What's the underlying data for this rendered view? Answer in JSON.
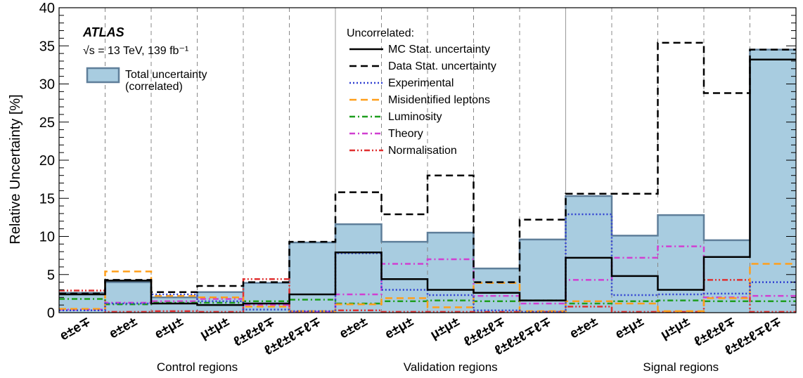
{
  "chart_data": {
    "type": "step-histogram",
    "ylabel": "Relative Uncertainty [%]",
    "ylim": [
      0,
      40
    ],
    "yticks": [
      "0",
      "5",
      "10",
      "15",
      "20",
      "25",
      "30",
      "35",
      "40"
    ],
    "atlas_label": "ATLAS",
    "energy_label": "√s = 13 TeV, 139 fb⁻¹",
    "total_legend_line1": "Total uncertainty",
    "total_legend_line2": "(correlated)",
    "uncorrelated_title": "Uncorrelated:",
    "categories": [
      "e±e∓",
      "e±e±",
      "e±μ±",
      "μ±μ±",
      "ℓ±ℓ±ℓ∓",
      "ℓ±ℓ±ℓ∓ℓ∓",
      "e±e±",
      "e±μ±",
      "μ±μ±",
      "ℓ±ℓ±ℓ∓",
      "ℓ±ℓ±ℓ∓ℓ∓",
      "e±e±",
      "e±μ±",
      "μ±μ±",
      "ℓ±ℓ±ℓ∓",
      "ℓ±ℓ±ℓ∓ℓ∓"
    ],
    "groups": [
      {
        "label": "Control regions",
        "start": 0,
        "end": 6
      },
      {
        "label": "Validation regions",
        "start": 6,
        "end": 11
      },
      {
        "label": "Signal regions",
        "start": 11,
        "end": 16
      }
    ],
    "total": {
      "name": "Total uncertainty (correlated)",
      "fill": "#a8cce0",
      "stroke": "#5f7f9a",
      "values": [
        2.6,
        4.0,
        2.0,
        2.7,
        3.9,
        9.2,
        11.6,
        9.3,
        10.5,
        5.8,
        9.6,
        15.3,
        10.1,
        12.8,
        9.5,
        34.5
      ]
    },
    "series": [
      {
        "name": "MC Stat. uncertainty",
        "color": "#000000",
        "dash": "solid",
        "values": [
          2.4,
          4.2,
          1.2,
          1.0,
          1.2,
          2.4,
          7.9,
          4.4,
          3.0,
          2.6,
          1.6,
          7.2,
          4.8,
          3.0,
          7.3,
          33.2
        ]
      },
      {
        "name": "Data Stat. uncertainty",
        "color": "#000000",
        "dash": "dashed",
        "values": [
          2.5,
          4.3,
          2.7,
          3.5,
          4.0,
          9.3,
          15.8,
          12.9,
          18.0,
          4.0,
          12.2,
          15.6,
          15.6,
          35.4,
          28.8,
          34.5
        ]
      },
      {
        "name": "Experimental",
        "color": "#2f3fd1",
        "dash": "dotted",
        "values": [
          0.3,
          1.2,
          2.4,
          1.5,
          0.4,
          0.2,
          7.8,
          3.0,
          2.3,
          0.3,
          0.1,
          12.9,
          2.3,
          2.4,
          2.5,
          4.0
        ]
      },
      {
        "name": "Misidentified leptons",
        "color": "#ff9f1a",
        "dash": "dashed",
        "values": [
          0.5,
          5.4,
          2.2,
          2.0,
          0.8,
          0.2,
          1.1,
          1.9,
          0.7,
          3.9,
          0.2,
          1.5,
          1.2,
          0.2,
          1.9,
          6.4
        ]
      },
      {
        "name": "Luminosity",
        "color": "#1e9e1e",
        "dash": "dashdot",
        "values": [
          1.8,
          1.1,
          1.3,
          1.3,
          1.5,
          1.7,
          1.2,
          1.5,
          1.6,
          1.5,
          1.6,
          1.2,
          1.5,
          1.6,
          1.5,
          1.5
        ]
      },
      {
        "name": "Theory",
        "color": "#d13fd1",
        "dash": "dashdot",
        "values": [
          0.4,
          1.3,
          1.5,
          1.8,
          1.0,
          0.1,
          2.4,
          6.4,
          7.0,
          2.2,
          1.2,
          4.3,
          7.2,
          8.7,
          2.0,
          2.2
        ]
      },
      {
        "name": "Normalisation",
        "color": "#e03030",
        "dash": "dashdotdot",
        "values": [
          2.9,
          0.1,
          0.2,
          0.1,
          4.4,
          0.1,
          0.3,
          0.1,
          0.1,
          0.1,
          0.1,
          0.8,
          0.1,
          0.1,
          4.3,
          0.1
        ]
      }
    ]
  }
}
